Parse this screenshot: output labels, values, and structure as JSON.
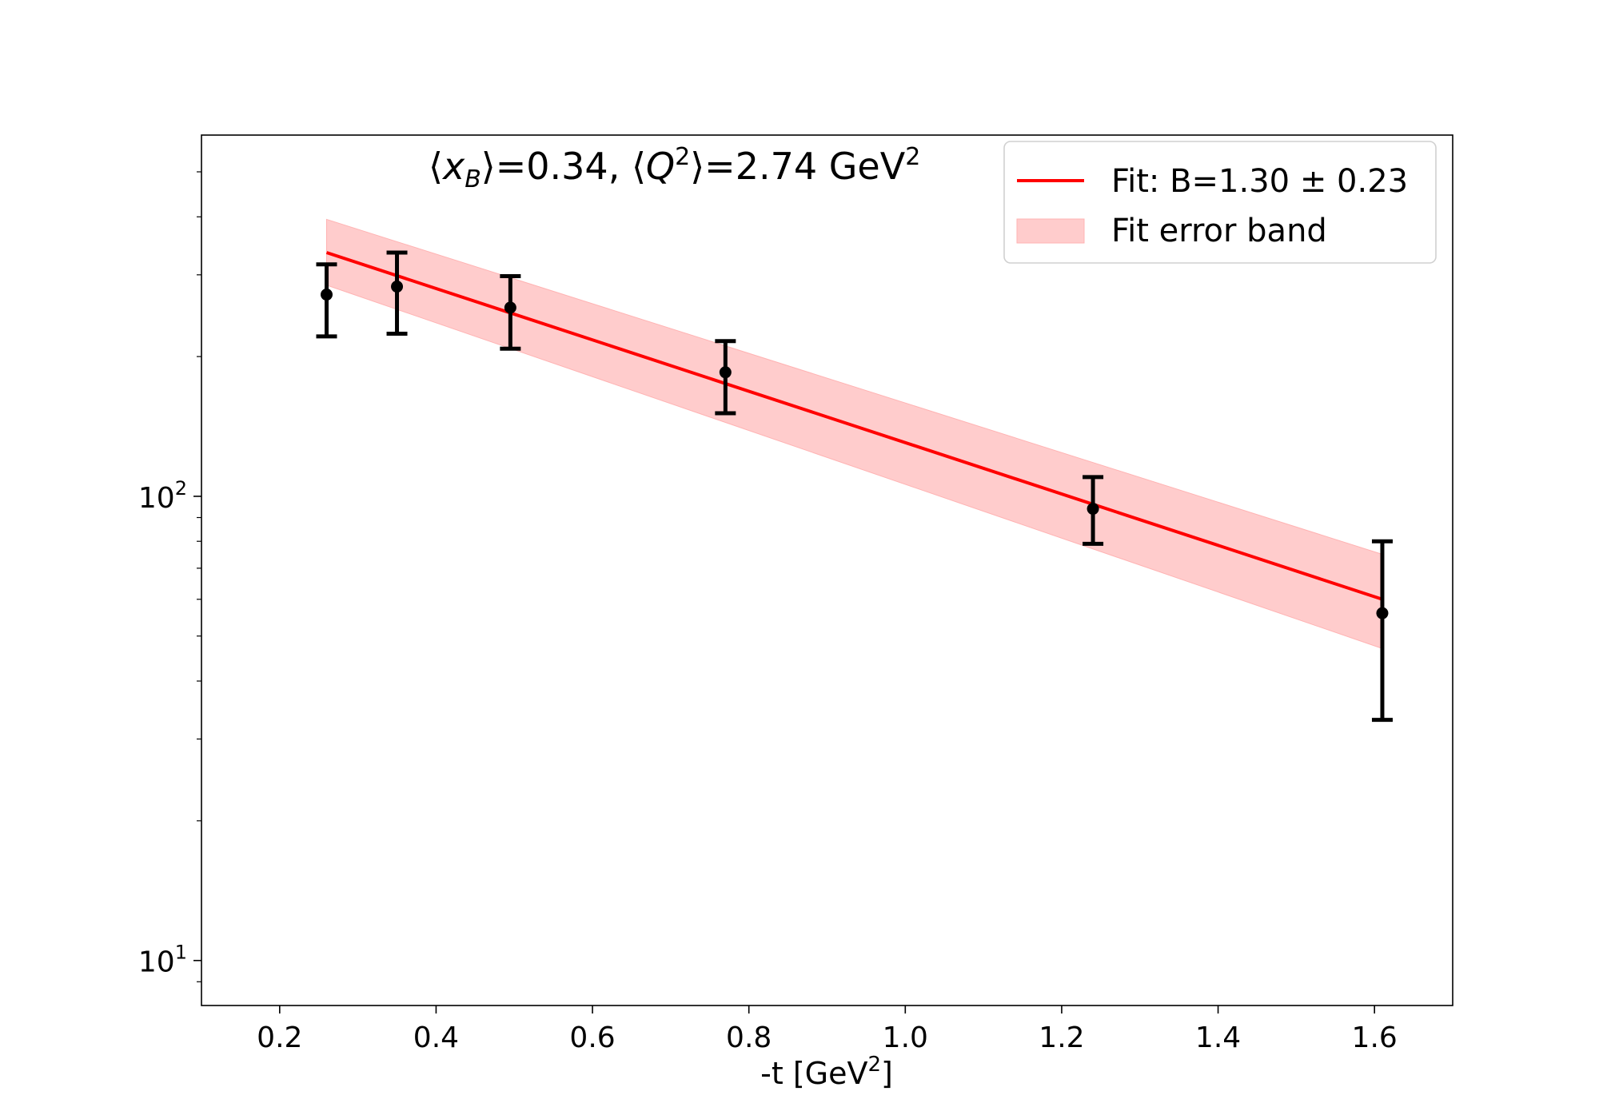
{
  "chart_data": {
    "type": "scatter",
    "title_parts": {
      "xb_symbol": "x",
      "xb_sub": "B",
      "xb_value": "=0.34, ",
      "q_symbol": "Q",
      "q_sup": "2",
      "q_value": "=2.74 GeV",
      "unit_sup": "2"
    },
    "xlabel_main": "-t [GeV",
    "xlabel_sup": "2",
    "xlabel_end": "]",
    "xlim": [
      0.1,
      1.7
    ],
    "ylim": [
      8,
      600
    ],
    "yscale": "log",
    "x_ticks": [
      "0.2",
      "0.4",
      "0.6",
      "0.8",
      "1.0",
      "1.2",
      "1.4",
      "1.6"
    ],
    "y_ticks": [
      {
        "value": 10,
        "base": "10",
        "exp": "1"
      },
      {
        "value": 100,
        "base": "10",
        "exp": "2"
      }
    ],
    "grid": false,
    "legend_position": "top-right",
    "series": [
      {
        "name": "",
        "kind": "errorbar",
        "color": "#000000",
        "x": [
          0.26,
          0.35,
          0.495,
          0.77,
          1.24,
          1.61
        ],
        "y": [
          272,
          283,
          255,
          185,
          94,
          56
        ],
        "yerr_low": [
          51,
          59,
          47,
          34,
          15,
          23
        ],
        "yerr_high": [
          44,
          52,
          43,
          31,
          16,
          24
        ]
      },
      {
        "name": "Fit: B=1.30 ± 0.23",
        "kind": "line",
        "color": "#ff0000",
        "x": [
          0.26,
          1.61
        ],
        "y": [
          335,
          60
        ]
      },
      {
        "name": "Fit error band",
        "kind": "band",
        "color": "#ffcccc",
        "x": [
          0.26,
          1.61
        ],
        "y_low": [
          285,
          47
        ],
        "y_high": [
          395,
          75
        ]
      }
    ]
  }
}
